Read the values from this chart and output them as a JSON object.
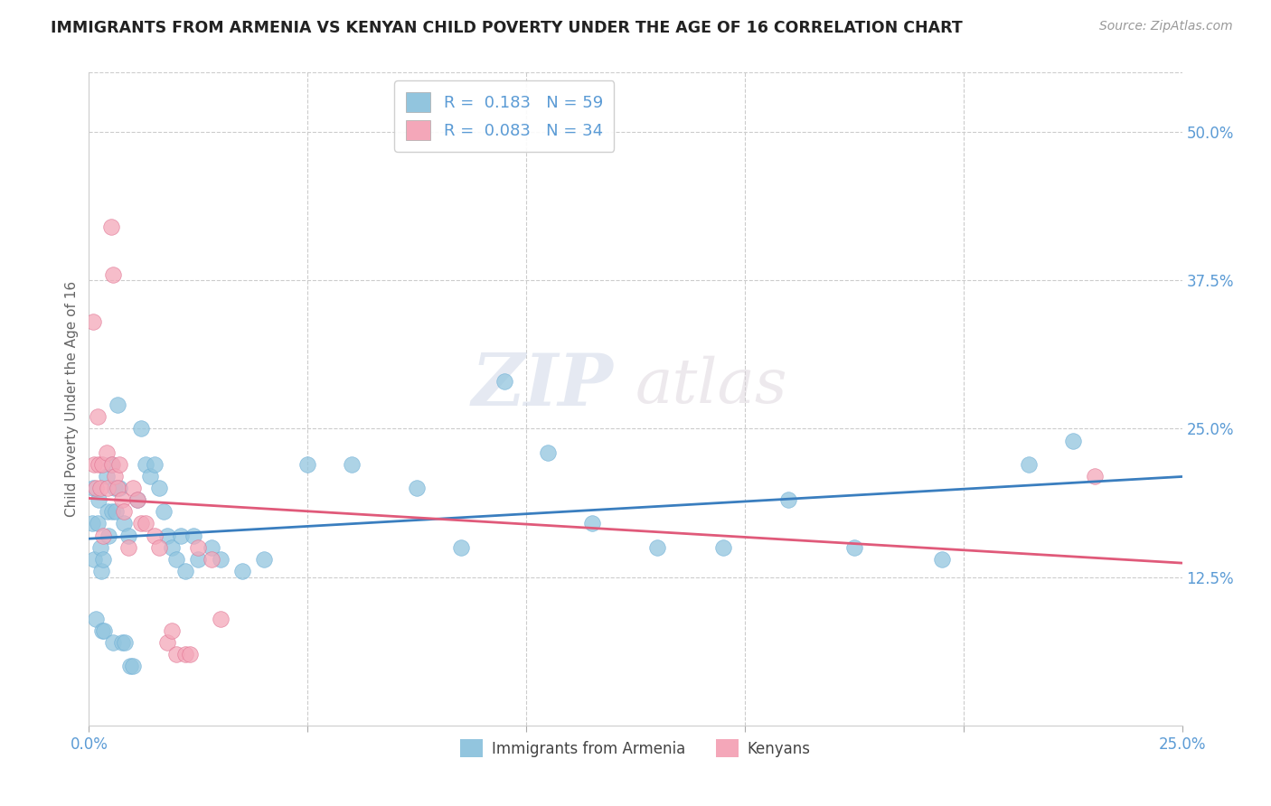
{
  "title": "IMMIGRANTS FROM ARMENIA VS KENYAN CHILD POVERTY UNDER THE AGE OF 16 CORRELATION CHART",
  "source": "Source: ZipAtlas.com",
  "ylabel": "Child Poverty Under the Age of 16",
  "legend_label1": "Immigrants from Armenia",
  "legend_label2": "Kenyans",
  "blue_color": "#92c5de",
  "pink_color": "#f4a7b9",
  "blue_line_color": "#3a7ebf",
  "pink_line_color": "#e05a7a",
  "axis_tick_color": "#5b9bd5",
  "watermark": "ZIPatlas",
  "xlim": [
    0.0,
    0.25
  ],
  "ylim": [
    0.0,
    0.55
  ],
  "y_ticks": [
    0.125,
    0.25,
    0.375,
    0.5
  ],
  "x_ticks_minor": [
    0.05,
    0.1,
    0.15,
    0.2
  ],
  "x_ticks_labeled": [
    0.0,
    0.25
  ],
  "blue_x": [
    0.0008,
    0.001,
    0.0012,
    0.0015,
    0.002,
    0.0022,
    0.0025,
    0.0028,
    0.003,
    0.0032,
    0.0035,
    0.004,
    0.0042,
    0.0045,
    0.005,
    0.0052,
    0.0055,
    0.006,
    0.0062,
    0.0065,
    0.007,
    0.0075,
    0.008,
    0.0082,
    0.009,
    0.0095,
    0.01,
    0.011,
    0.012,
    0.013,
    0.014,
    0.015,
    0.016,
    0.017,
    0.018,
    0.019,
    0.02,
    0.021,
    0.022,
    0.024,
    0.025,
    0.028,
    0.03,
    0.035,
    0.04,
    0.05,
    0.06,
    0.075,
    0.085,
    0.095,
    0.105,
    0.115,
    0.13,
    0.145,
    0.16,
    0.175,
    0.195,
    0.215,
    0.225
  ],
  "blue_y": [
    0.17,
    0.2,
    0.14,
    0.09,
    0.17,
    0.19,
    0.15,
    0.13,
    0.08,
    0.14,
    0.08,
    0.21,
    0.18,
    0.16,
    0.22,
    0.18,
    0.07,
    0.2,
    0.18,
    0.27,
    0.2,
    0.07,
    0.17,
    0.07,
    0.16,
    0.05,
    0.05,
    0.19,
    0.25,
    0.22,
    0.21,
    0.22,
    0.2,
    0.18,
    0.16,
    0.15,
    0.14,
    0.16,
    0.13,
    0.16,
    0.14,
    0.15,
    0.14,
    0.13,
    0.14,
    0.22,
    0.22,
    0.2,
    0.15,
    0.29,
    0.23,
    0.17,
    0.15,
    0.15,
    0.19,
    0.15,
    0.14,
    0.22,
    0.24
  ],
  "pink_x": [
    0.001,
    0.0012,
    0.0015,
    0.002,
    0.0022,
    0.0025,
    0.003,
    0.0032,
    0.004,
    0.0042,
    0.005,
    0.0052,
    0.0055,
    0.006,
    0.0065,
    0.007,
    0.0075,
    0.008,
    0.009,
    0.01,
    0.011,
    0.012,
    0.013,
    0.015,
    0.016,
    0.018,
    0.019,
    0.02,
    0.022,
    0.023,
    0.025,
    0.028,
    0.03,
    0.23
  ],
  "pink_y": [
    0.34,
    0.22,
    0.2,
    0.26,
    0.22,
    0.2,
    0.22,
    0.16,
    0.23,
    0.2,
    0.42,
    0.22,
    0.38,
    0.21,
    0.2,
    0.22,
    0.19,
    0.18,
    0.15,
    0.2,
    0.19,
    0.17,
    0.17,
    0.16,
    0.15,
    0.07,
    0.08,
    0.06,
    0.06,
    0.06,
    0.15,
    0.14,
    0.09,
    0.21
  ]
}
